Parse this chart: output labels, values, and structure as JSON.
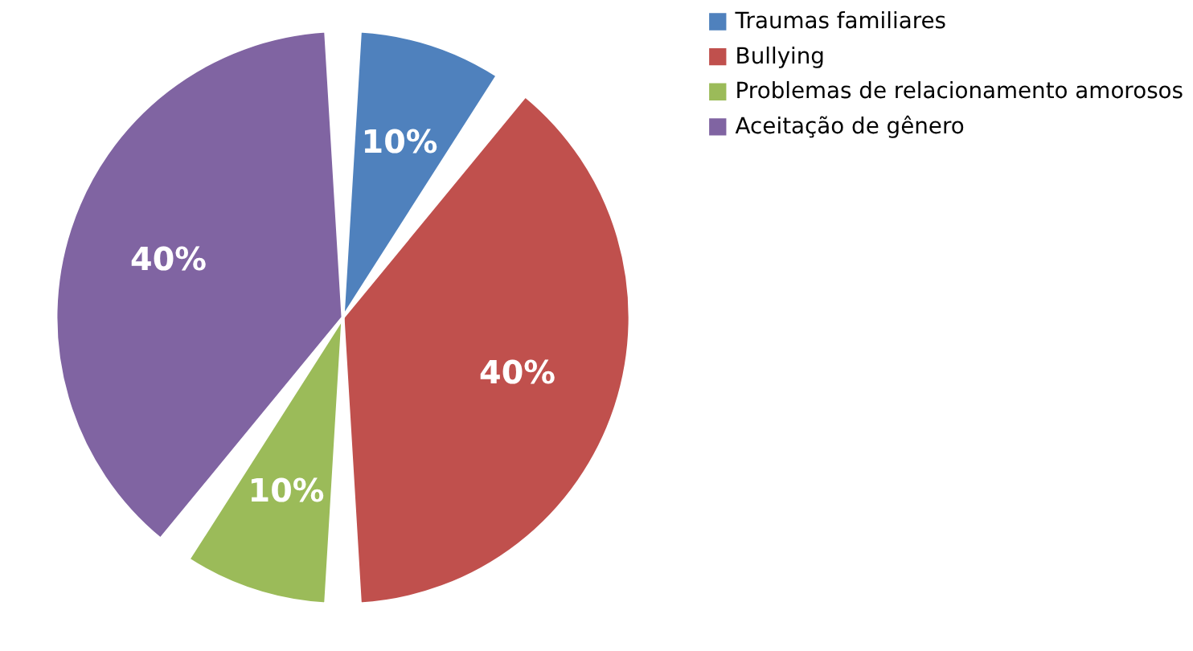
{
  "chart_data": {
    "type": "pie",
    "categories": [
      "Traumas familiares",
      "Bullying",
      "Problemas de relacionamento amorosos",
      "Aceitação de gênero"
    ],
    "values": [
      10,
      40,
      10,
      40
    ],
    "colors": [
      "#4f81bd",
      "#c0504d",
      "#9bbb59",
      "#8064a2"
    ],
    "value_labels": [
      "10%",
      "40%",
      "10%",
      "40%"
    ],
    "legend": "right"
  }
}
